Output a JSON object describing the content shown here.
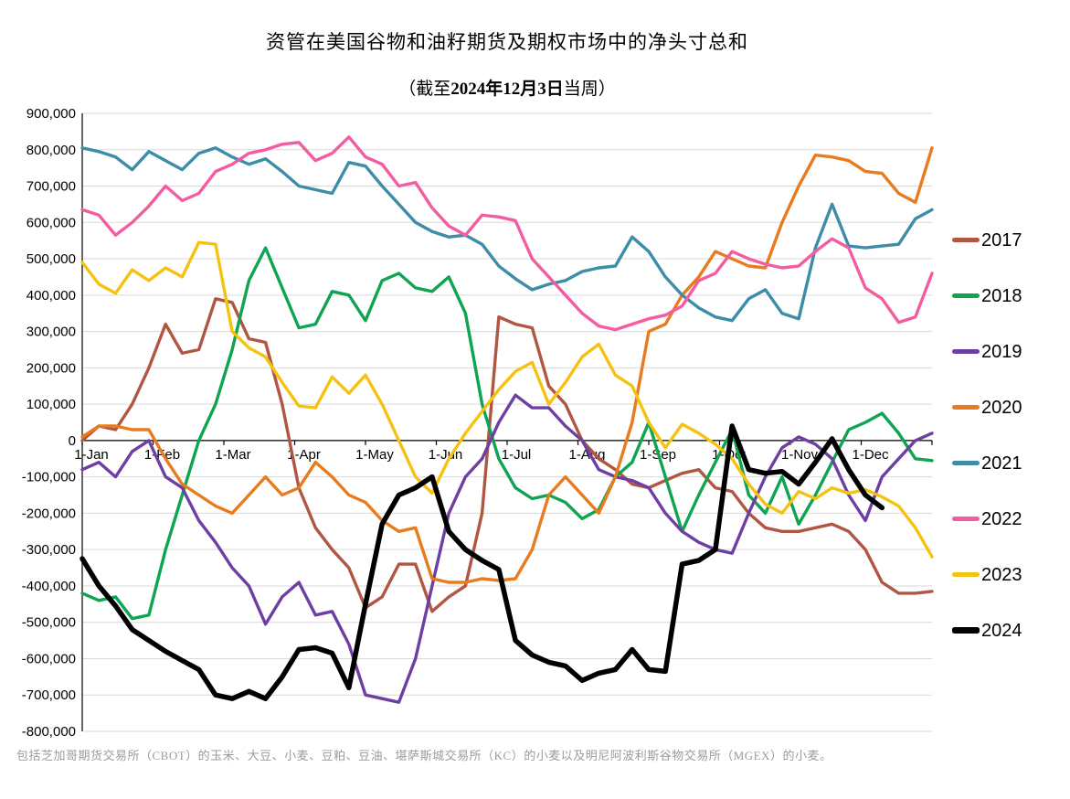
{
  "page": {
    "title": "资管在美国谷物和油籽期货及期权市场中的净头寸总和",
    "subtitle_prefix": "（截至",
    "subtitle_date": "2024年12月3日",
    "subtitle_suffix": "当周）",
    "footnote": "包括芝加哥期货交易所（CBOT）的玉米、大豆、小麦、豆粕、豆油、堪萨斯城交易所（KC）的小麦以及明尼阿波利斯谷物交易所（MGEX）的小麦。"
  },
  "chart_data": {
    "type": "line",
    "title": "资管在美国谷物和油籽期货及期权市场中的净头寸总和",
    "subtitle": "（截至2024年12月3日当周）",
    "footnote": "包括芝加哥期货交易所（CBOT）的玉米、大豆、小麦、豆粕、豆油、堪萨斯城交易所（KC）的小麦以及明尼阿波利斯谷物交易所（MGEX）的小麦。",
    "grid": true,
    "legend_position": "right",
    "x_axis": {
      "unit": "weekly observations, Jan–Dec",
      "labels": [
        "1-Jan",
        "1-Feb",
        "1-Mar",
        "1-Apr",
        "1-May",
        "1-Jun",
        "1-Jul",
        "1-Aug",
        "1-Sep",
        "1-Oct",
        "1-Nov",
        "1-Dec"
      ]
    },
    "y_axis": {
      "min": -800000,
      "max": 900000,
      "tick_step": 100000,
      "tick_labels": [
        "900,000",
        "800,000",
        "700,000",
        "600,000",
        "500,000",
        "400,000",
        "300,000",
        "200,000",
        "100,000",
        "0",
        "-100,000",
        "-200,000",
        "-300,000",
        "-400,000",
        "-500,000",
        "-600,000",
        "-700,000",
        "-800,000"
      ]
    },
    "series": [
      {
        "name": "2017",
        "color": "#B05642",
        "emphasis": false,
        "values": [
          0,
          40000,
          30000,
          100000,
          200000,
          320000,
          240000,
          250000,
          390000,
          380000,
          280000,
          270000,
          100000,
          -130000,
          -240000,
          -300000,
          -350000,
          -460000,
          -430000,
          -340000,
          -340000,
          -470000,
          -430000,
          -400000,
          -200000,
          340000,
          320000,
          310000,
          150000,
          100000,
          0,
          -50000,
          -80000,
          -120000,
          -130000,
          -110000,
          -90000,
          -80000,
          -130000,
          -140000,
          -200000,
          -240000,
          -250000,
          -250000,
          -240000,
          -230000,
          -250000,
          -300000,
          -390000,
          -420000,
          -420000,
          -415000
        ]
      },
      {
        "name": "2018",
        "color": "#0EA451",
        "emphasis": false,
        "values": [
          -420000,
          -440000,
          -430000,
          -490000,
          -480000,
          -300000,
          -150000,
          0,
          100000,
          250000,
          440000,
          530000,
          420000,
          310000,
          320000,
          410000,
          400000,
          330000,
          440000,
          460000,
          420000,
          410000,
          450000,
          350000,
          100000,
          -50000,
          -130000,
          -160000,
          -150000,
          -170000,
          -215000,
          -190000,
          -100000,
          -60000,
          50000,
          -100000,
          -250000,
          -150000,
          -60000,
          30000,
          -150000,
          -200000,
          -100000,
          -230000,
          -150000,
          -60000,
          30000,
          50000,
          75000,
          20000,
          -50000,
          -55000
        ]
      },
      {
        "name": "2019",
        "color": "#6E3FA3",
        "emphasis": false,
        "values": [
          -80000,
          -60000,
          -100000,
          -30000,
          0,
          -100000,
          -130000,
          -220000,
          -280000,
          -350000,
          -400000,
          -505000,
          -430000,
          -390000,
          -480000,
          -470000,
          -560000,
          -700000,
          -710000,
          -720000,
          -600000,
          -400000,
          -200000,
          -100000,
          -50000,
          50000,
          125000,
          90000,
          90000,
          40000,
          0,
          -80000,
          -100000,
          -110000,
          -130000,
          -200000,
          -250000,
          -280000,
          -300000,
          -310000,
          -200000,
          -100000,
          -20000,
          10000,
          -10000,
          -50000,
          -150000,
          -220000,
          -100000,
          -50000,
          0,
          20000
        ]
      },
      {
        "name": "2020",
        "color": "#E87B1E",
        "emphasis": false,
        "values": [
          10000,
          40000,
          40000,
          30000,
          30000,
          -50000,
          -120000,
          -150000,
          -180000,
          -200000,
          -150000,
          -100000,
          -150000,
          -130000,
          -60000,
          -100000,
          -150000,
          -170000,
          -220000,
          -250000,
          -240000,
          -380000,
          -390000,
          -390000,
          -380000,
          -385000,
          -380000,
          -300000,
          -150000,
          -100000,
          -150000,
          -200000,
          -100000,
          50000,
          300000,
          320000,
          400000,
          450000,
          520000,
          500000,
          480000,
          475000,
          600000,
          700000,
          785000,
          780000,
          770000,
          740000,
          735000,
          680000,
          655000,
          805000
        ]
      },
      {
        "name": "2021",
        "color": "#3D8DA8",
        "emphasis": false,
        "values": [
          805000,
          795000,
          780000,
          745000,
          795000,
          770000,
          745000,
          790000,
          805000,
          780000,
          760000,
          775000,
          740000,
          700000,
          690000,
          680000,
          765000,
          755000,
          700000,
          650000,
          600000,
          575000,
          560000,
          565000,
          540000,
          480000,
          445000,
          415000,
          430000,
          440000,
          465000,
          475000,
          480000,
          560000,
          520000,
          450000,
          400000,
          365000,
          340000,
          330000,
          390000,
          415000,
          350000,
          335000,
          530000,
          650000,
          535000,
          530000,
          535000,
          540000,
          610000,
          635000
        ]
      },
      {
        "name": "2022",
        "color": "#F45CA2",
        "emphasis": false,
        "values": [
          635000,
          620000,
          565000,
          600000,
          645000,
          700000,
          660000,
          680000,
          740000,
          760000,
          790000,
          800000,
          815000,
          820000,
          770000,
          790000,
          835000,
          780000,
          760000,
          700000,
          710000,
          640000,
          590000,
          565000,
          620000,
          615000,
          605000,
          500000,
          450000,
          400000,
          350000,
          315000,
          305000,
          320000,
          335000,
          345000,
          370000,
          440000,
          460000,
          520000,
          500000,
          485000,
          475000,
          480000,
          520000,
          555000,
          530000,
          420000,
          390000,
          325000,
          340000,
          460000
        ]
      },
      {
        "name": "2023",
        "color": "#F5C211",
        "emphasis": false,
        "values": [
          490000,
          430000,
          405000,
          470000,
          440000,
          475000,
          450000,
          545000,
          540000,
          300000,
          255000,
          230000,
          160000,
          95000,
          90000,
          175000,
          130000,
          180000,
          100000,
          0,
          -100000,
          -145000,
          -50000,
          20000,
          80000,
          140000,
          190000,
          215000,
          100000,
          160000,
          230000,
          265000,
          180000,
          150000,
          50000,
          -20000,
          45000,
          20000,
          -10000,
          -50000,
          -120000,
          -175000,
          -200000,
          -140000,
          -160000,
          -130000,
          -145000,
          -135000,
          -155000,
          -180000,
          -240000,
          -320000
        ]
      },
      {
        "name": "2024",
        "color": "#000000",
        "emphasis": true,
        "values": [
          -325000,
          -400000,
          -455000,
          -520000,
          -550000,
          -580000,
          -605000,
          -630000,
          -700000,
          -710000,
          -690000,
          -710000,
          -650000,
          -575000,
          -570000,
          -585000,
          -680000,
          -450000,
          -230000,
          -150000,
          -130000,
          -100000,
          -250000,
          -300000,
          -330000,
          -355000,
          -550000,
          -590000,
          -610000,
          -620000,
          -660000,
          -640000,
          -630000,
          -575000,
          -630000,
          -635000,
          -340000,
          -330000,
          -300000,
          40000,
          -80000,
          -90000,
          -85000,
          -120000,
          -60000,
          5000,
          -80000,
          -150000,
          -185000
        ]
      }
    ]
  }
}
